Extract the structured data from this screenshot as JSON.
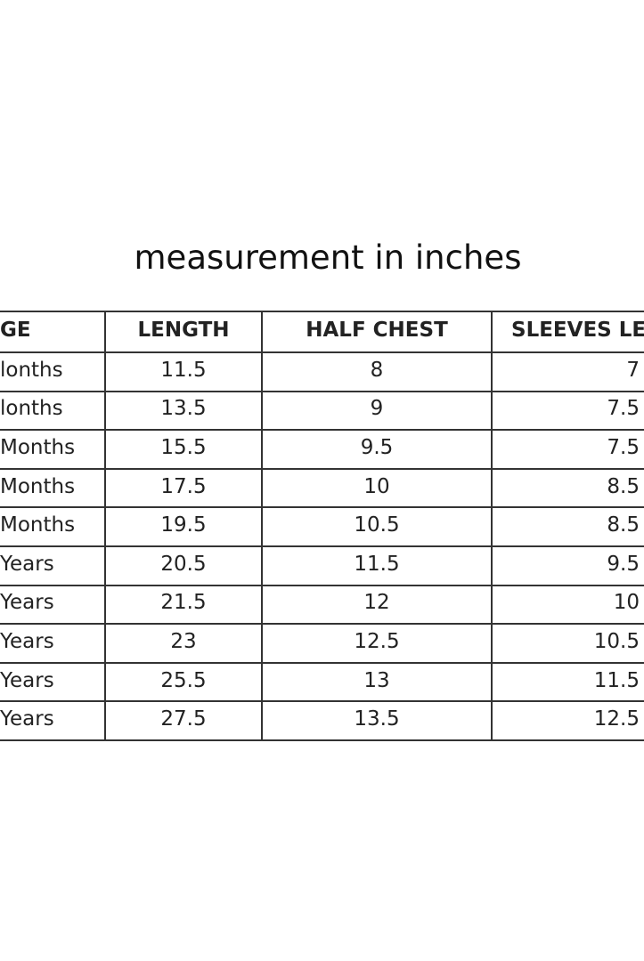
{
  "title": "measurement in inches",
  "table": {
    "header": [
      "GE",
      "LENGTH",
      "HALF CHEST",
      "SLEEVES LE"
    ],
    "rows": [
      [
        "lonths",
        "11.5",
        "8",
        "7"
      ],
      [
        "lonths",
        "13.5",
        "9",
        "7.5"
      ],
      [
        "Months",
        "15.5",
        "9.5",
        "7.5"
      ],
      [
        "Months",
        "17.5",
        "10",
        "8.5"
      ],
      [
        "Months",
        "19.5",
        "10.5",
        "8.5"
      ],
      [
        "Years",
        "20.5",
        "11.5",
        "9.5"
      ],
      [
        "Years",
        "21.5",
        "12",
        "10"
      ],
      [
        "Years",
        "23",
        "12.5",
        "10.5"
      ],
      [
        "Years",
        "25.5",
        "13",
        "11.5"
      ],
      [
        "Years",
        "27.5",
        "13.5",
        "12.5"
      ]
    ]
  }
}
